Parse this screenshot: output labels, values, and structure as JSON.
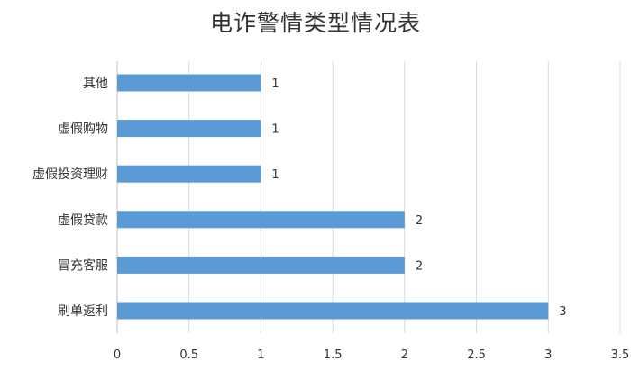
{
  "chart_data": {
    "type": "bar",
    "orientation": "horizontal",
    "title": "电诈警情类型情况表",
    "xlabel": "",
    "ylabel": "",
    "categories": [
      "其他",
      "虚假购物",
      "虚假投资理财",
      "虚假贷款",
      "冒充客服",
      "刷单返利"
    ],
    "values": [
      1,
      1,
      1,
      2,
      2,
      3
    ],
    "xlim": [
      0,
      3.5
    ],
    "x_ticks": [
      0,
      0.5,
      1,
      1.5,
      2,
      2.5,
      3,
      3.5
    ],
    "x_tick_labels": [
      "0",
      "0.5",
      "1",
      "1.5",
      "2",
      "2.5",
      "3",
      "3.5"
    ],
    "data_labels": true,
    "grid": "vertical",
    "legend": "none",
    "bar_color": "#5b9bd5",
    "grid_color": "#d9d9d9"
  }
}
